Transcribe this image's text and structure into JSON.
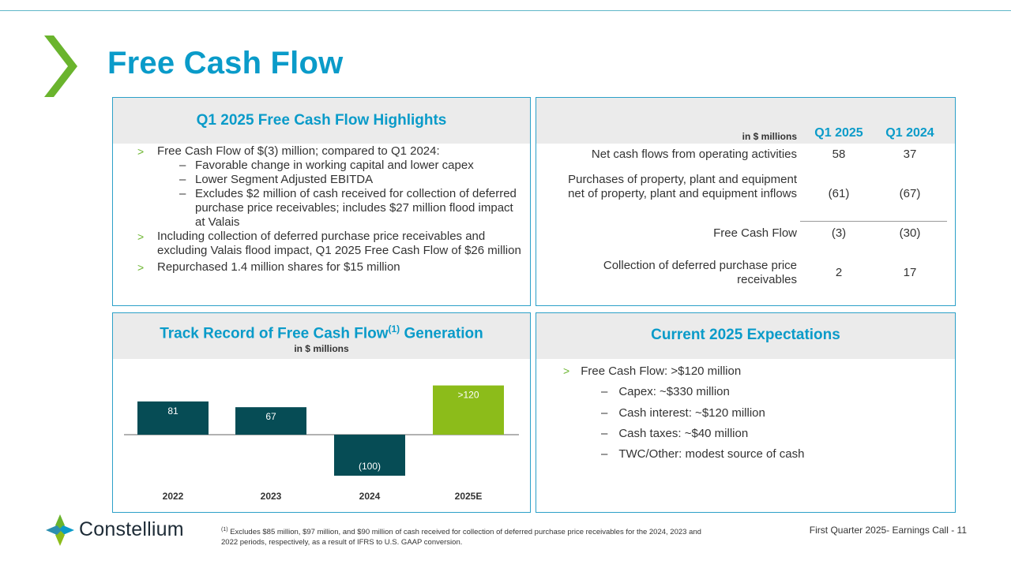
{
  "page": {
    "title": "Free Cash Flow",
    "footer": "First Quarter 2025- Earnings Call - 11",
    "logo_text": "Constellium",
    "footnote_mark": "(1)",
    "footnote_text": "Excludes $85 million, $97 million, and $90 million of cash received for collection of deferred purchase price receivables for the 2024, 2023 and 2022 periods, respectively, as a result of IFRS to U.S. GAAP conversion."
  },
  "colors": {
    "accent_blue": "#0a9bc9",
    "accent_green": "#6ab42d",
    "bar_teal": "#064c55",
    "bar_green": "#8cbc1a"
  },
  "highlights": {
    "title": "Q1 2025 Free Cash Flow Highlights",
    "bullet_glyph": ">",
    "dash_glyph": "–",
    "b1": "Free Cash Flow of $(3) million; compared to Q1 2024:",
    "s1": "Favorable change in working capital and lower capex",
    "s2": "Lower Segment Adjusted EBITDA",
    "s3": "Excludes $2 million of cash received for collection of deferred purchase price receivables; includes $27 million flood impact at Valais",
    "b2": "Including collection of deferred purchase price receivables and excluding Valais flood impact, Q1 2025 Free Cash Flow of $26 million",
    "b3": "Repurchased 1.4 million shares for $15 million"
  },
  "table": {
    "unit": "in $ millions",
    "col1": "Q1 2025",
    "col2": "Q1 2024",
    "rows": [
      {
        "label": "Net cash flows from operating activities",
        "q1_2025": "58",
        "q1_2024": "37"
      },
      {
        "label": "Purchases of property, plant and equipment net of property, plant and equipment inflows",
        "q1_2025": "(61)",
        "q1_2024": "(67)"
      },
      {
        "label": "Free Cash Flow",
        "q1_2025": "(3)",
        "q1_2024": "(30)"
      },
      {
        "label": "Collection of deferred purchase price receivables",
        "q1_2025": "2",
        "q1_2024": "17"
      }
    ]
  },
  "track": {
    "title": "Track Record of Free Cash Flow",
    "title_sup": "(1)",
    "title_tail": "Generation",
    "subtitle": "in $ millions"
  },
  "chart_data": {
    "type": "bar",
    "categories": [
      "2022",
      "2023",
      "2024",
      "2025E"
    ],
    "values": [
      81,
      67,
      -100,
      120
    ],
    "data_labels": [
      "81",
      "67",
      "(100)",
      ">120"
    ],
    "bar_colors": [
      "#064c55",
      "#064c55",
      "#064c55",
      "#8cbc1a"
    ],
    "title": "Track Record of Free Cash Flow(1) Generation",
    "subtitle": "in $ millions",
    "xlabel": "",
    "ylabel": ""
  },
  "expectations": {
    "title": "Current 2025 Expectations",
    "bullet_glyph": ">",
    "dash_glyph": "–",
    "main": "Free Cash Flow: >$120 million",
    "subs": [
      "Capex: ~$330 million",
      "Cash interest: ~$120 million",
      "Cash taxes: ~$40 million",
      "TWC/Other: modest source of cash"
    ]
  }
}
